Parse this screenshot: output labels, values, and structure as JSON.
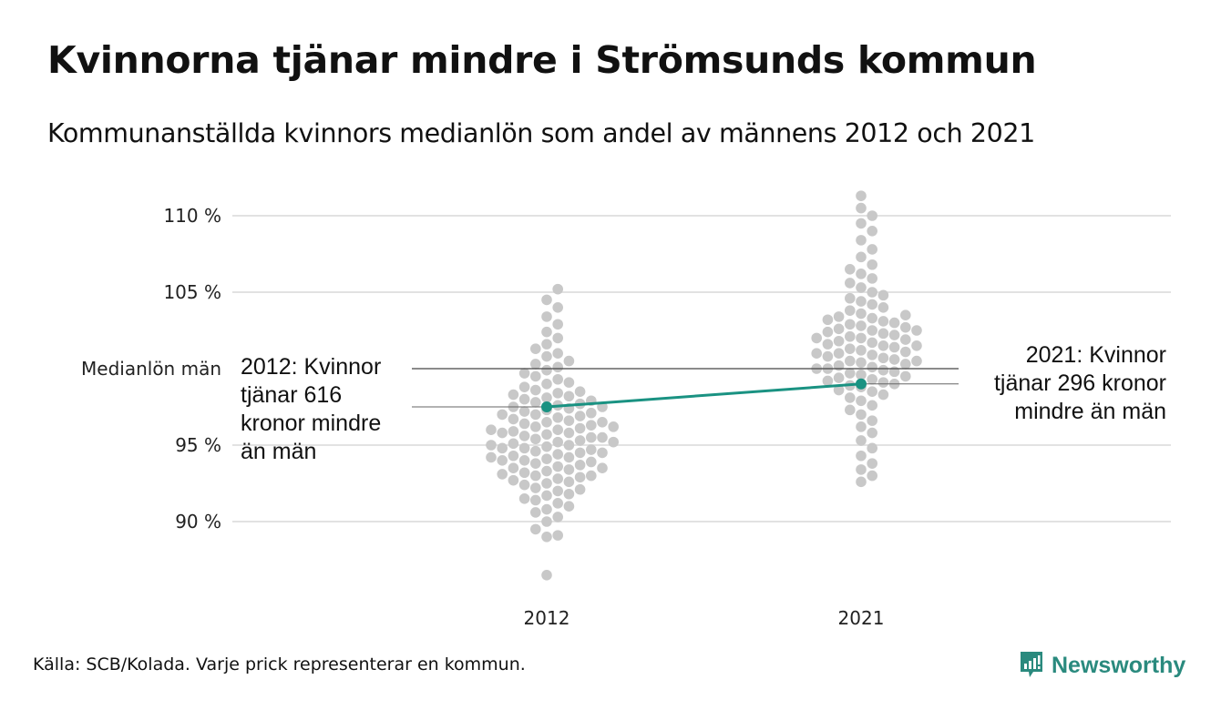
{
  "title": "Kvinnorna tjänar mindre i Strömsunds kommun",
  "subtitle": "Kommunanställda kvinnors medianlön som andel av männens 2012 och 2021",
  "source": "Källa: SCB/Kolada. Varje prick representerar en kommun.",
  "brand": "Newsworthy",
  "colors": {
    "dots": "#c8c8c8",
    "highlight": "#1a9282",
    "grid": "#e2e2e2",
    "reference": "#444444"
  },
  "chart_data": {
    "type": "scatter",
    "subtype": "beeswarm",
    "title": "Kvinnorna tjänar mindre i Strömsunds kommun",
    "categories": [
      "2012",
      "2021"
    ],
    "ylim": [
      86,
      112
    ],
    "yticks": [
      90,
      95,
      105,
      110
    ],
    "ytick_labels": [
      "90 %",
      "95 %",
      "105 %",
      "110 %"
    ],
    "reference_line": {
      "value": 100,
      "label": "Medianlön män"
    },
    "series": [
      {
        "name": "2012",
        "values": [
          86.5,
          89.0,
          89.1,
          89.5,
          90.0,
          90.3,
          90.6,
          90.8,
          91.0,
          91.2,
          91.4,
          91.5,
          91.7,
          91.8,
          92.0,
          92.1,
          92.2,
          92.4,
          92.5,
          92.6,
          92.7,
          92.8,
          92.9,
          93.0,
          93.0,
          93.1,
          93.2,
          93.3,
          93.4,
          93.5,
          93.5,
          93.6,
          93.7,
          93.8,
          93.9,
          94.0,
          94.0,
          94.1,
          94.2,
          94.2,
          94.3,
          94.4,
          94.5,
          94.5,
          94.6,
          94.7,
          94.8,
          94.8,
          94.9,
          95.0,
          95.0,
          95.1,
          95.2,
          95.2,
          95.3,
          95.4,
          95.5,
          95.5,
          95.6,
          95.7,
          95.8,
          95.8,
          95.9,
          96.0,
          96.0,
          96.1,
          96.2,
          96.2,
          96.3,
          96.4,
          96.5,
          96.5,
          96.6,
          96.7,
          96.8,
          96.9,
          97.0,
          97.0,
          97.1,
          97.2,
          97.3,
          97.4,
          97.5,
          97.5,
          97.6,
          97.7,
          97.8,
          97.9,
          98.0,
          98.1,
          98.2,
          98.3,
          98.4,
          98.5,
          98.6,
          98.8,
          99.0,
          99.1,
          99.3,
          99.5,
          99.7,
          99.9,
          100.1,
          100.3,
          100.5,
          100.8,
          101.0,
          101.3,
          101.6,
          102.0,
          102.4,
          102.9,
          103.4,
          104.0,
          104.5,
          105.2
        ]
      },
      {
        "name": "2021",
        "values": [
          92.6,
          93.0,
          93.4,
          93.8,
          94.3,
          94.8,
          95.3,
          95.8,
          96.2,
          96.6,
          97.0,
          97.3,
          97.6,
          97.9,
          98.1,
          98.3,
          98.5,
          98.6,
          98.8,
          98.9,
          99.0,
          99.1,
          99.2,
          99.3,
          99.4,
          99.5,
          99.6,
          99.7,
          99.8,
          99.9,
          100.0,
          100.0,
          100.1,
          100.2,
          100.3,
          100.4,
          100.5,
          100.5,
          100.6,
          100.7,
          100.8,
          100.9,
          101.0,
          101.0,
          101.1,
          101.2,
          101.3,
          101.4,
          101.5,
          101.5,
          101.6,
          101.7,
          101.8,
          101.9,
          102.0,
          102.0,
          102.1,
          102.2,
          102.3,
          102.4,
          102.5,
          102.5,
          102.6,
          102.7,
          102.8,
          102.9,
          103.0,
          103.1,
          103.2,
          103.3,
          103.4,
          103.5,
          103.6,
          103.8,
          104.0,
          104.2,
          104.4,
          104.6,
          104.8,
          105.0,
          105.3,
          105.6,
          105.9,
          106.2,
          106.5,
          106.8,
          107.3,
          107.8,
          108.4,
          109.0,
          109.5,
          110.0,
          110.5,
          111.3
        ]
      }
    ],
    "highlight": {
      "name": "Strömsunds kommun",
      "values": {
        "2012": 97.5,
        "2021": 99.0
      }
    },
    "annotations": [
      {
        "year": "2012",
        "lines": [
          "2012: Kvinnor",
          "tjänar 616",
          "kronor mindre",
          "än män"
        ]
      },
      {
        "year": "2021",
        "lines": [
          "2021: Kvinnor",
          "tjänar 296 kronor",
          "mindre än män"
        ]
      }
    ]
  }
}
